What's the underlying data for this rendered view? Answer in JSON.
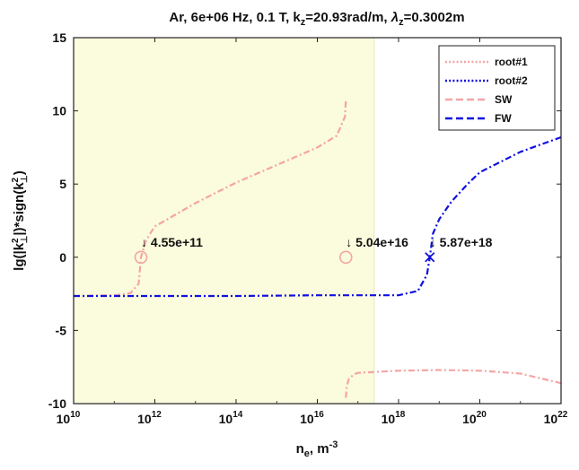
{
  "chart_data": {
    "type": "line",
    "title": "Ar, 6e+06 Hz, 0.1 T, k_z=20.93rad/m, λ_z=0.3002m",
    "title_parts": {
      "prefix": "Ar, 6e+06 Hz, 0.1 T, k",
      "sub_z1": "z",
      "mid": "=20.93rad/m, ",
      "lambda": "λ",
      "sub_z2": "z",
      "suffix": "=0.3002m"
    },
    "xlabel": "n_e, m^-3",
    "xlabel_parts": {
      "base": "n",
      "sub": "e",
      "mid": ", m",
      "sup": "-3"
    },
    "ylabel": "lg(|k_⊥^2|)*sign(k_⊥^2)",
    "ylabel_parts": {
      "a": "lg(|k",
      "sup1": "2",
      "sub1": "⊥",
      "b": "|)*sign(k",
      "sup2": "2",
      "sub2": "⊥",
      "c": ")"
    },
    "x_scale": "log",
    "xlim": [
      10000000000.0,
      1e+22
    ],
    "ylim": [
      -10,
      15
    ],
    "x_ticks": [
      {
        "base": "10",
        "exp": "10"
      },
      {
        "base": "10",
        "exp": "12"
      },
      {
        "base": "10",
        "exp": "14"
      },
      {
        "base": "10",
        "exp": "16"
      },
      {
        "base": "10",
        "exp": "18"
      },
      {
        "base": "10",
        "exp": "20"
      },
      {
        "base": "10",
        "exp": "22"
      }
    ],
    "x_tick_values": [
      10000000000.0,
      1000000000000.0,
      100000000000000.0,
      1e+16,
      1e+18,
      1e+20,
      1e+22
    ],
    "y_ticks": [
      "-10",
      "-5",
      "0",
      "5",
      "10",
      "15"
    ],
    "y_tick_values": [
      -10,
      -5,
      0,
      5,
      10,
      15
    ],
    "grid": false,
    "legend_position": "top-right",
    "shaded_region": {
      "x": [
        10000000000.0,
        2.5e+17
      ],
      "color": "#fbfbdd"
    },
    "legend": [
      {
        "name": "root#1",
        "color": "#f4a5a5",
        "style": "dotted"
      },
      {
        "name": "root#2",
        "color": "#1010e0",
        "style": "dotted"
      },
      {
        "name": "SW",
        "color": "#f4a5a5",
        "style": "dashed"
      },
      {
        "name": "FW",
        "color": "#1010e0",
        "style": "dashed"
      }
    ],
    "series": [
      {
        "name": "SW",
        "color": "#f4a5a5",
        "segments": [
          {
            "x": [
              10000000000.0,
              100000000000.0,
              250000000000.0,
              400000000000.0,
              455000000000.0,
              600000000000.0,
              800000000000.0,
              1000000000000.0,
              10000000000000.0,
              100000000000000.0,
              1000000000000000.0,
              1e+16,
              3e+16,
              4.8e+16,
              5.04e+16
            ],
            "y": [
              -2.65,
              -2.6,
              -2.45,
              -1.8,
              0,
              1.1,
              1.7,
              2.1,
              3.7,
              5.1,
              6.3,
              7.5,
              8.3,
              9.6,
              10.8
            ]
          },
          {
            "x": [
              5.04e+16,
              5.3e+16,
              6e+16,
              8e+16,
              1e+17,
              1e+18,
              1e+19,
              1e+20,
              1e+21,
              1e+22
            ],
            "y": [
              -9.6,
              -8.8,
              -8.3,
              -8.0,
              -7.9,
              -7.75,
              -7.7,
              -7.75,
              -7.95,
              -8.6
            ]
          }
        ]
      },
      {
        "name": "FW",
        "color": "#1010e0",
        "segments": [
          {
            "x": [
              10000000000.0,
              1000000000000.0,
              100000000000000.0,
              1e+16,
              1e+17,
              1e+18,
              3e+18,
              5e+18,
              5.87e+18,
              7e+18,
              1e+19,
              2e+19,
              5e+19,
              1e+20,
              1e+21,
              1e+22
            ],
            "y": [
              -2.65,
              -2.65,
              -2.65,
              -2.6,
              -2.6,
              -2.6,
              -2.3,
              -1.2,
              0,
              1.6,
              2.6,
              3.8,
              5.0,
              5.8,
              7.2,
              8.2
            ]
          }
        ]
      }
    ],
    "annotations": [
      {
        "label": "↓ 4.55e+11",
        "x": 455000000000.0,
        "y": 0,
        "marker": "circle",
        "color": "#f4a5a5"
      },
      {
        "label": "↓ 5.04e+16",
        "x": 5.04e+16,
        "y": 0,
        "marker": "circle",
        "color": "#f4a5a5"
      },
      {
        "label": "↓ 5.87e+18",
        "x": 5.87e+18,
        "y": 0,
        "marker": "x",
        "color": "#1010e0"
      }
    ]
  }
}
